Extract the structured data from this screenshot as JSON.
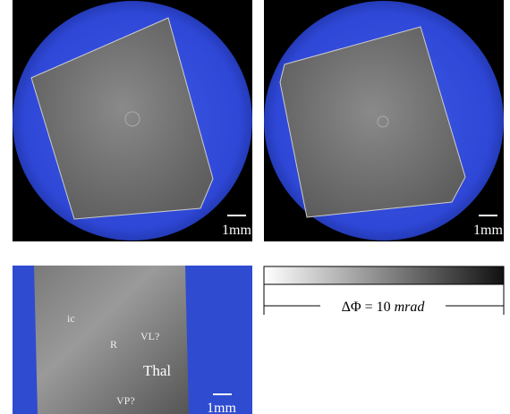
{
  "panels": [
    {
      "scale_bar": "1mm"
    },
    {
      "scale_bar": "1mm"
    },
    {
      "scale_bar": "1mm",
      "labels": [
        "ic",
        "R",
        "VL?",
        "Thal",
        "VP?"
      ]
    }
  ],
  "colorbar": {
    "label": "ΔΦ = 10",
    "unit": "mrad"
  }
}
